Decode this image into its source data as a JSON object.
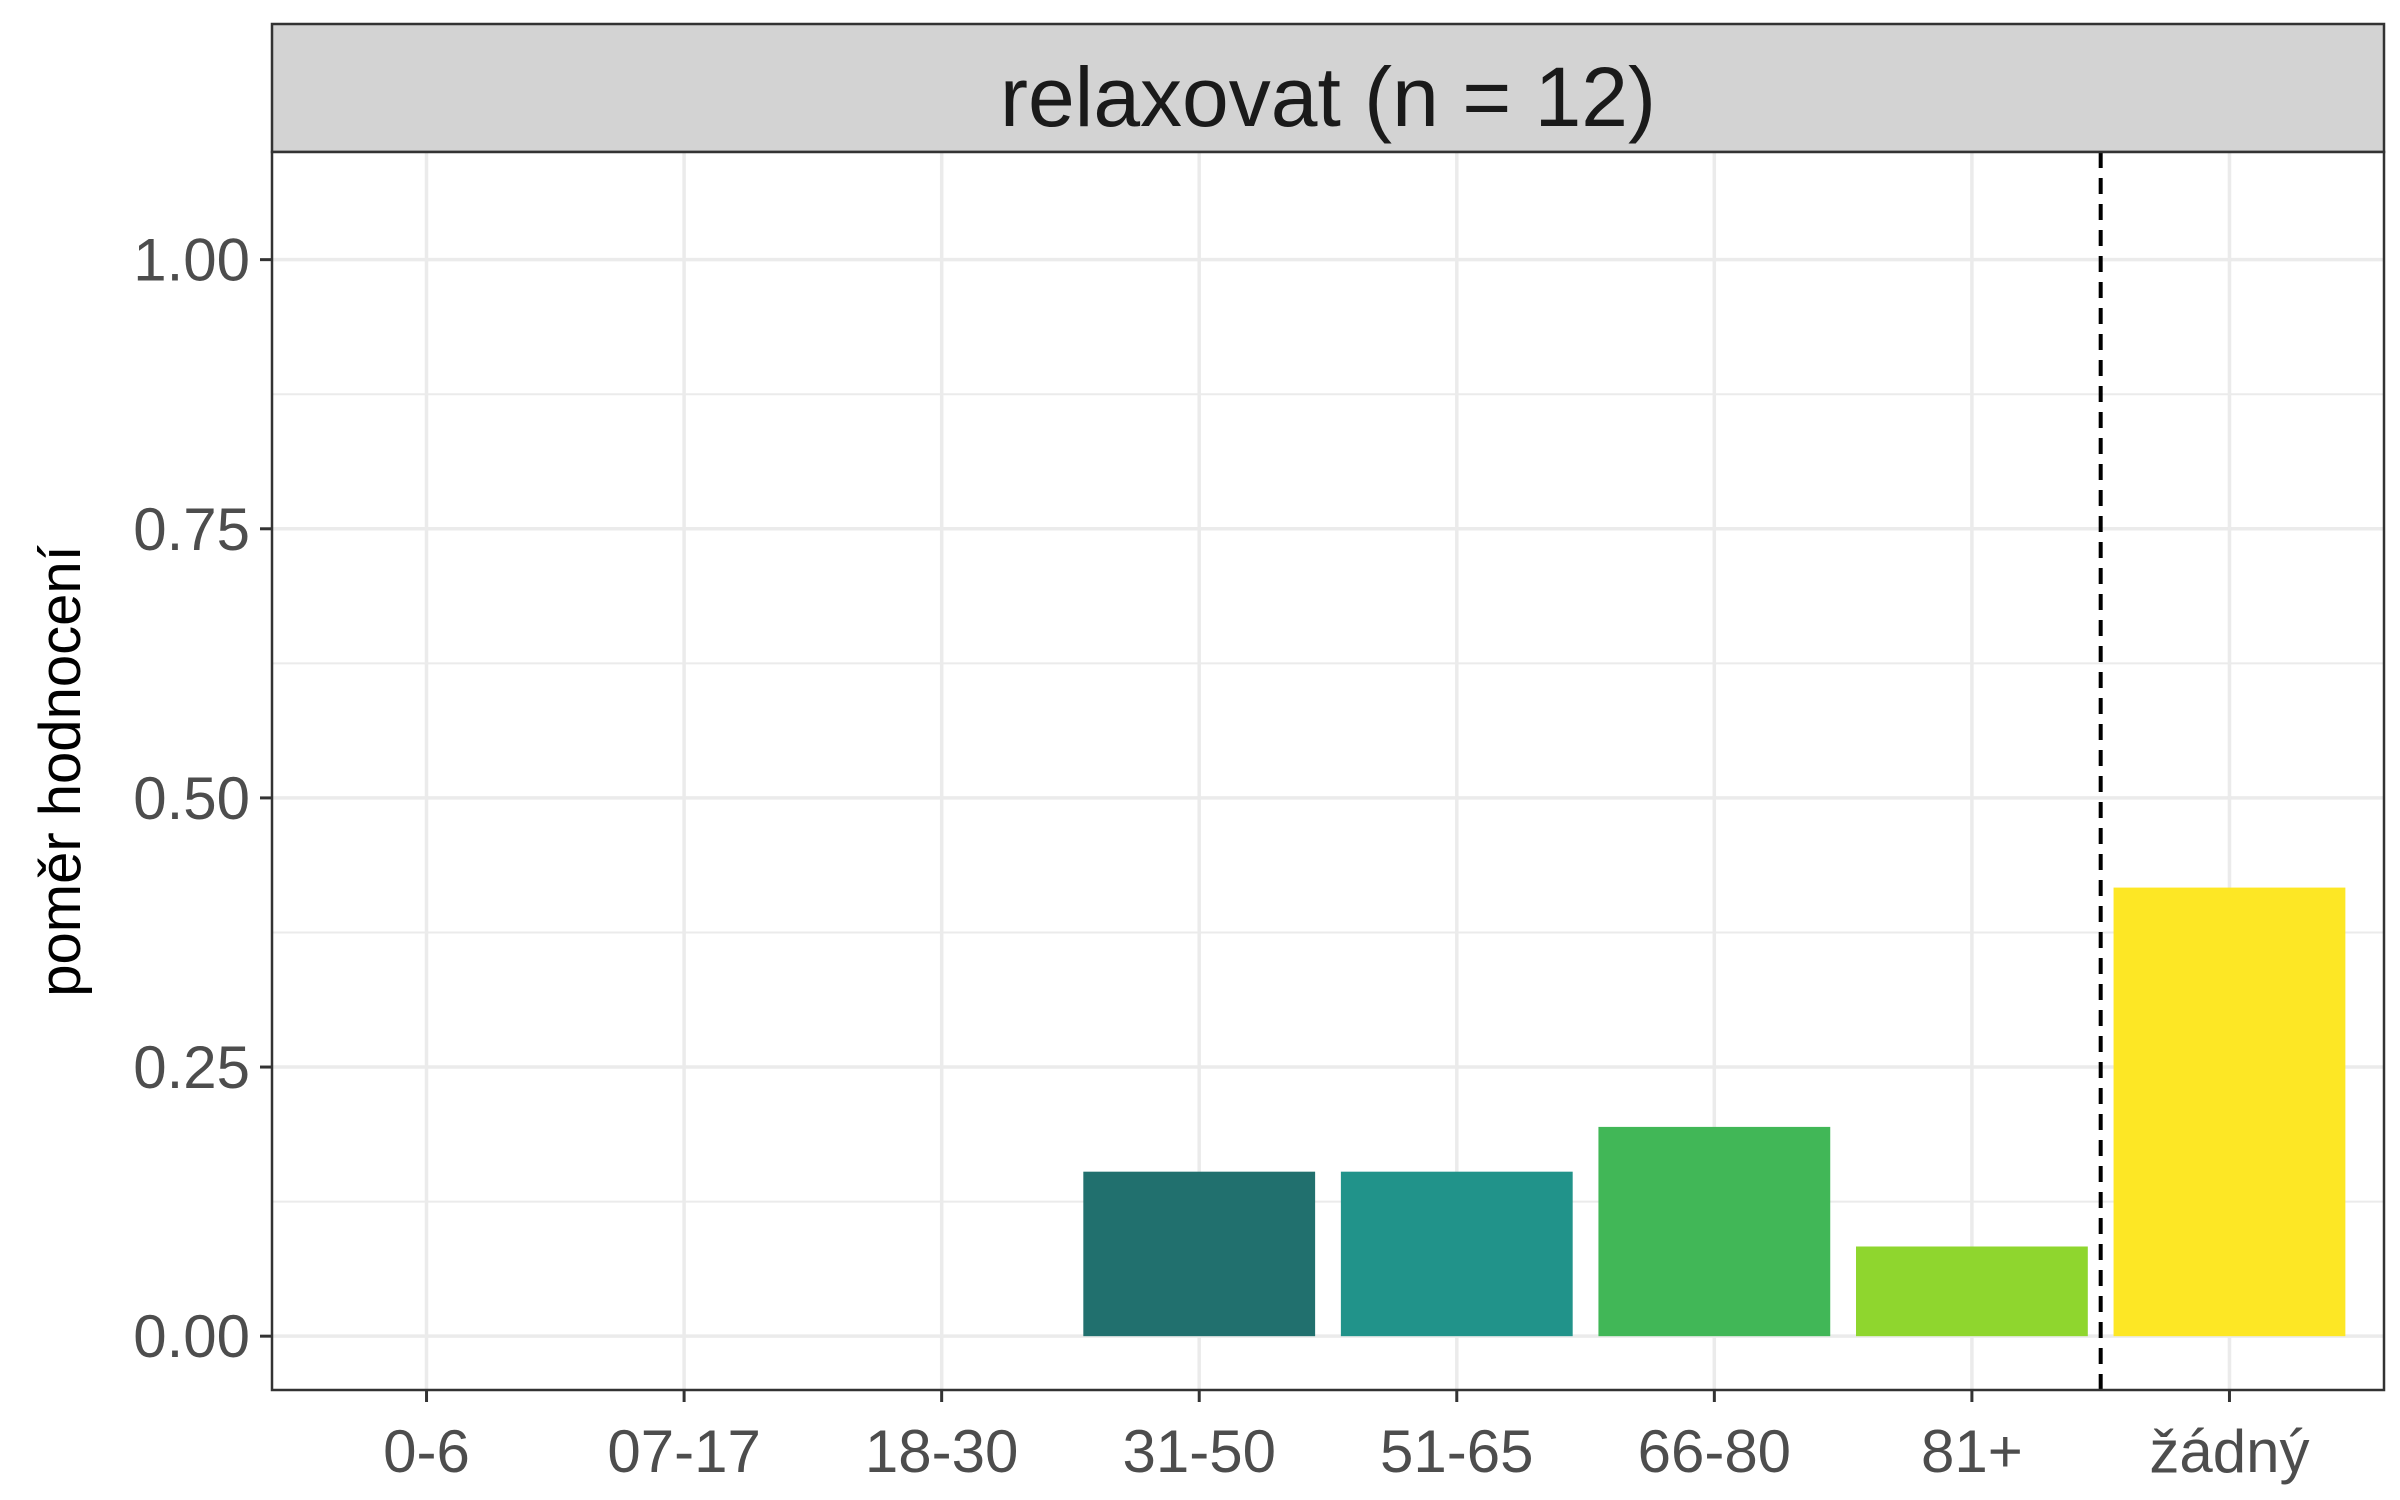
{
  "chart_data": {
    "type": "bar",
    "title": "relaxovat (n = 12)",
    "xlabel": "",
    "ylabel": "poměr hodnocení",
    "categories": [
      "0-6",
      "07-17",
      "18-30",
      "31-50",
      "51-65",
      "66-80",
      "81+",
      "žádný"
    ],
    "values": [
      0,
      0,
      0,
      0.1528,
      0.1528,
      0.1944,
      0.0833,
      0.4167
    ],
    "colors": [
      "#440154",
      "#46337E",
      "#365C8D",
      "#21706E",
      "#21938A",
      "#41B757",
      "#8FD62E",
      "#FDE725"
    ],
    "ylim": [
      -0.05,
      1.1
    ],
    "yticks": [
      0.0,
      0.25,
      0.5,
      0.75,
      1.0
    ],
    "ytick_labels": [
      "0.00",
      "0.25",
      "0.50",
      "0.75",
      "1.00"
    ],
    "y_minor_ticks": [
      0.125,
      0.375,
      0.625,
      0.875
    ],
    "reference_line": {
      "between": [
        "81+",
        "žádný"
      ],
      "style": "dashed",
      "color": "#000000"
    },
    "grid": true,
    "legend": "none",
    "background": "#FFFFFF",
    "strip_fill": "#D3D3D3"
  }
}
